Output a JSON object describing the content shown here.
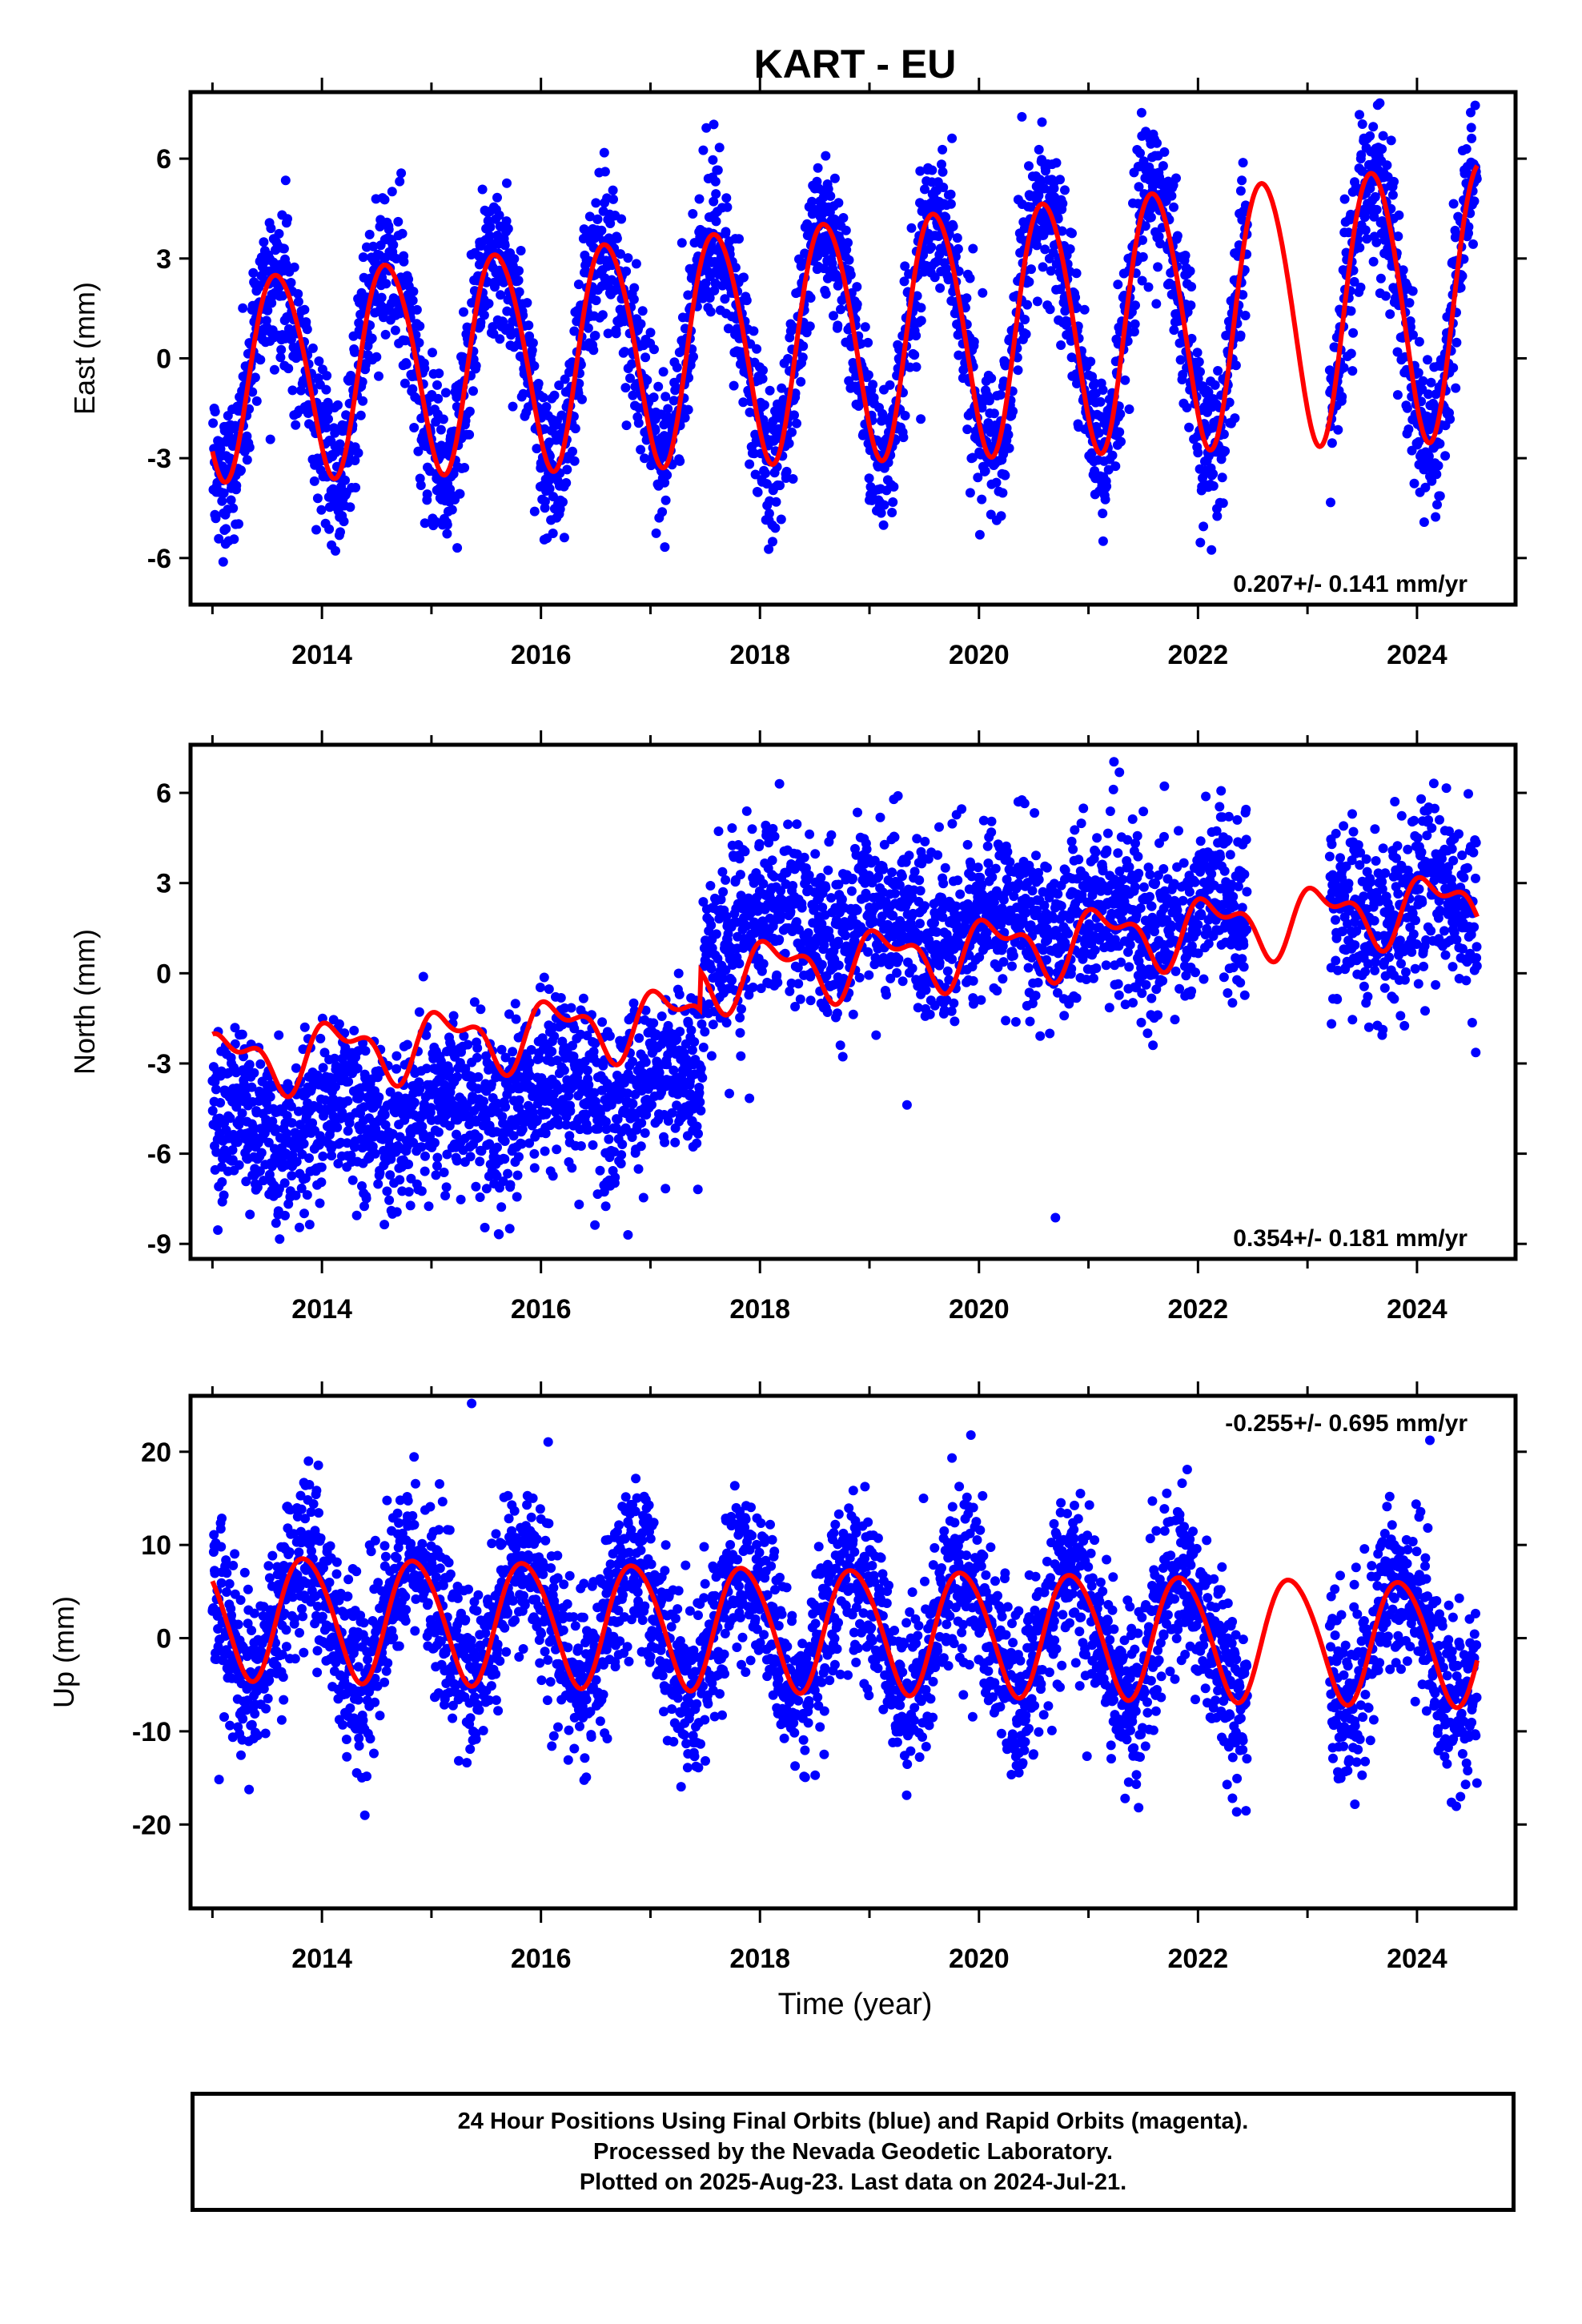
{
  "title": "KART - EU",
  "xlabel": "Time (year)",
  "caption": [
    "24 Hour Positions Using Final Orbits (blue) and Rapid Orbits (magenta).",
    "Processed by the Nevada Geodetic Laboratory.",
    "Plotted on 2025-Aug-23. Last data on 2024-Jul-21."
  ],
  "colors": {
    "points": "#0000ff",
    "model": "#ff0000",
    "axes": "#000000"
  },
  "chart_data": [
    {
      "type": "scatter",
      "ylabel": "East (mm)",
      "rate_label": "0.207+/- 0.141 mm/yr",
      "rate_position": "bottom-right",
      "xlim": [
        2012.8,
        2024.9
      ],
      "ylim": [
        -7.4,
        8.0
      ],
      "xticks": [
        2014,
        2016,
        2018,
        2020,
        2022,
        2024
      ],
      "yticks": [
        -6,
        -3,
        0,
        3,
        6
      ],
      "data_range": [
        2013.0,
        2024.55
      ],
      "gaps": [
        [
          2022.45,
          2023.2
        ]
      ],
      "model": {
        "offset": -0.5,
        "rate": 0.207,
        "annual_amplitude": 3.0,
        "amplitude_growth": 0.1,
        "annual_phase_year": 2013.35,
        "semiannual_amplitude": 0.3
      },
      "scatter_noise": 1.15,
      "series": [
        {
          "type": "scatter",
          "values_description": "daily positions"
        },
        {
          "type": "line",
          "values_description": "model fit"
        }
      ]
    },
    {
      "type": "scatter",
      "ylabel": "North (mm)",
      "rate_label": "0.354+/- 0.181 mm/yr",
      "rate_position": "bottom-right",
      "xlim": [
        2012.8,
        2024.9
      ],
      "ylim": [
        -9.5,
        7.6
      ],
      "xticks": [
        2014,
        2016,
        2018,
        2020,
        2022,
        2024
      ],
      "yticks": [
        -9,
        -6,
        -3,
        0,
        3,
        6
      ],
      "data_range": [
        2013.0,
        2024.55
      ],
      "gaps": [
        [
          2022.45,
          2023.2
        ]
      ],
      "model": {
        "offset": -3.0,
        "rate": 0.354,
        "annual_amplitude": 0.9,
        "annual_phase_year": 2013.9,
        "semiannual_amplitude": 0.5,
        "step_year": 2017.45,
        "step_size": 1.3
      },
      "data_trend": [
        [
          2013.0,
          -5.2
        ],
        [
          2017.45,
          -3.6
        ],
        [
          2017.5,
          1.5
        ],
        [
          2024.55,
          2.2
        ]
      ],
      "scatter_noise": 1.4,
      "series": [
        {
          "type": "scatter",
          "values_description": "daily positions"
        },
        {
          "type": "line",
          "values_description": "model fit"
        }
      ]
    },
    {
      "type": "scatter",
      "ylabel": "Up (mm)",
      "rate_label": "-0.255+/- 0.695 mm/yr",
      "rate_position": "top-right",
      "xlim": [
        2012.8,
        2024.9
      ],
      "ylim": [
        -29,
        26
      ],
      "xticks": [
        2014,
        2016,
        2018,
        2020,
        2022,
        2024
      ],
      "yticks": [
        -20,
        -10,
        0,
        10,
        20
      ],
      "data_range": [
        2013.0,
        2024.55
      ],
      "gaps": [
        [
          2022.45,
          2023.2
        ]
      ],
      "model": {
        "offset": 2.5,
        "rate": -0.255,
        "annual_amplitude": 6.6,
        "annual_phase_year": 2013.6,
        "semiannual_amplitude": 0.6
      },
      "scatter_noise": 4.6,
      "series": [
        {
          "type": "scatter",
          "values_description": "daily positions"
        },
        {
          "type": "line",
          "values_description": "model fit"
        }
      ]
    }
  ]
}
